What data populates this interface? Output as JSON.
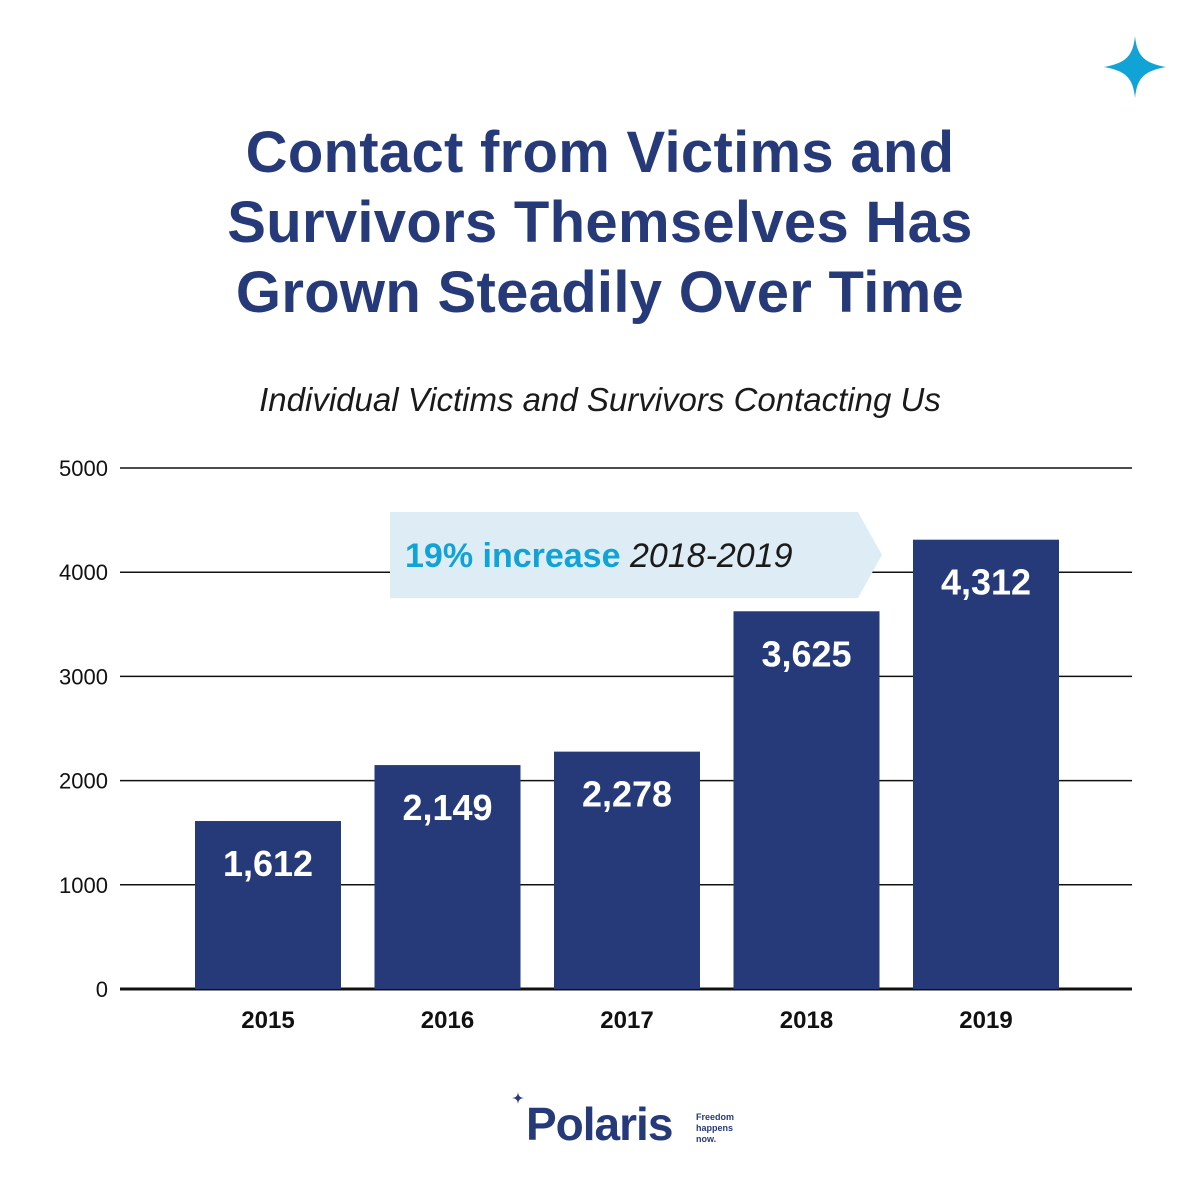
{
  "title_lines": [
    "Contact from Victims and",
    "Survivors Themselves Has",
    "Grown Steadily Over Time"
  ],
  "subtitle": "Individual Victims and Survivors Contacting Us",
  "colors": {
    "bar": "#263a7a",
    "accent": "#12a3d6",
    "callout_bg": "#deedf5",
    "title": "#263a7a"
  },
  "icons": {
    "corner": "four-point-star-icon",
    "logo_star": "four-point-star-icon"
  },
  "chart_data": {
    "type": "bar",
    "title": "Individual Victims and Survivors Contacting Us",
    "categories": [
      "2015",
      "2016",
      "2017",
      "2018",
      "2019"
    ],
    "values": [
      1612,
      2149,
      2278,
      3625,
      4312
    ],
    "value_labels": [
      "1,612",
      "2,149",
      "2,278",
      "3,625",
      "4,312"
    ],
    "xlabel": "",
    "ylabel": "",
    "ylim": [
      0,
      5000
    ],
    "yticks": [
      0,
      1000,
      2000,
      3000,
      4000,
      5000
    ],
    "grid": true,
    "legend": "none",
    "annotation": {
      "highlight": "19% increase",
      "text": "2018-2019"
    }
  },
  "logo": {
    "wordmark": "Polaris",
    "tagline": [
      "Freedom",
      "happens",
      "now."
    ]
  }
}
